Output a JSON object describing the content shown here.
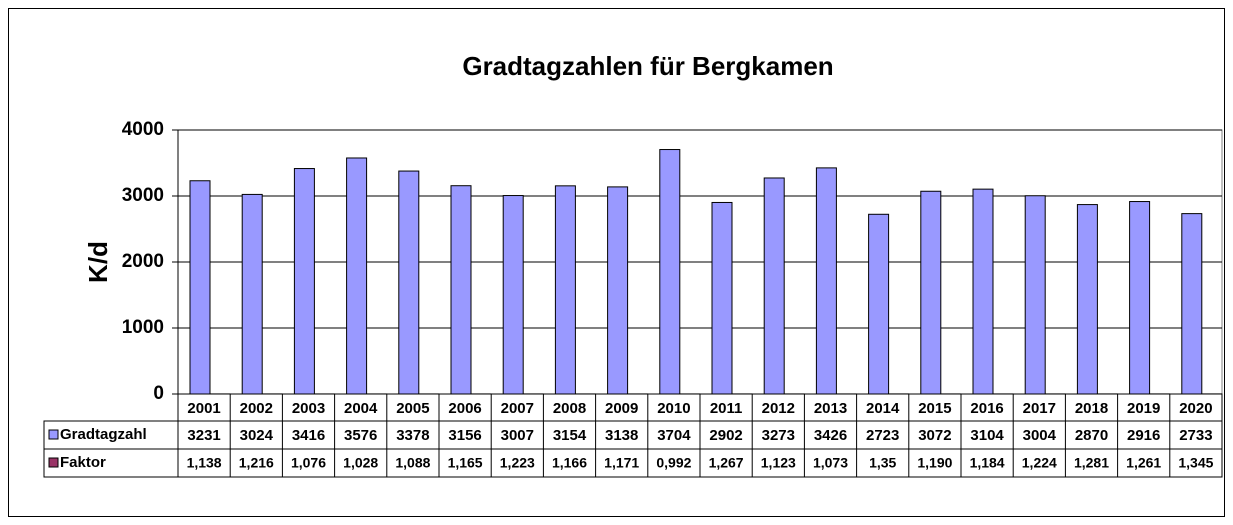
{
  "chart_data": {
    "type": "bar",
    "title": "Gradtagzahlen für Bergkamen",
    "y_label": "K/d",
    "categories": [
      "2001",
      "2002",
      "2003",
      "2004",
      "2005",
      "2006",
      "2007",
      "2008",
      "2009",
      "2010",
      "2011",
      "2012",
      "2013",
      "2014",
      "2015",
      "2016",
      "2017",
      "2018",
      "2019",
      "2020"
    ],
    "series": [
      {
        "name": "Gradtagzahl",
        "color": "#9999ff",
        "values": [
          3231,
          3024,
          3416,
          3576,
          3378,
          3156,
          3007,
          3154,
          3138,
          3704,
          2902,
          3273,
          3426,
          2723,
          3072,
          3104,
          3004,
          2870,
          2916,
          2733
        ]
      },
      {
        "name": "Faktor",
        "color": "#993366",
        "values": [
          1.138,
          1.216,
          1.076,
          1.028,
          1.088,
          1.165,
          1.223,
          1.166,
          1.171,
          0.992,
          1.267,
          1.123,
          1.073,
          1.35,
          1.19,
          1.184,
          1.224,
          1.281,
          1.261,
          1.345
        ],
        "value_labels": [
          "1,138",
          "1,216",
          "1,076",
          "1,028",
          "1,088",
          "1,165",
          "1,223",
          "1,166",
          "1,171",
          "0,992",
          "1,267",
          "1,123",
          "1,073",
          "1,35",
          "1,190",
          "1,184",
          "1,224",
          "1,281",
          "1,261",
          "1,345"
        ]
      }
    ],
    "ylim": [
      0,
      4000
    ],
    "yticks": [
      0,
      1000,
      2000,
      3000,
      4000
    ],
    "grid": true
  }
}
